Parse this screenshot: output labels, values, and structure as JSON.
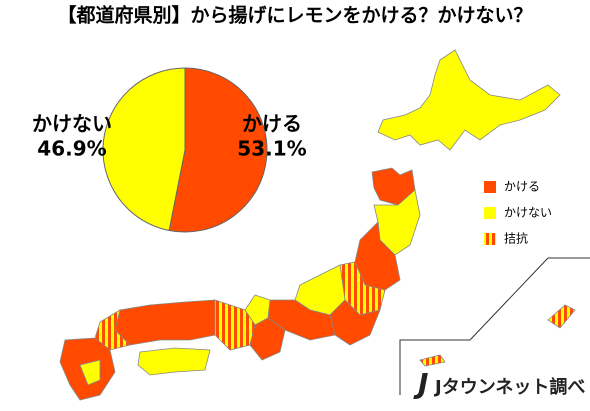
{
  "title": "【都道府県別】から揚げにレモンをかける？かけない？",
  "chart_data": {
    "type": "pie",
    "categories": [
      "かける",
      "かけない"
    ],
    "values": [
      53.1,
      46.9
    ],
    "value_labels": [
      "53.1%",
      "46.9%"
    ],
    "colors": [
      "#ff4a00",
      "#ffff00"
    ]
  },
  "map_legend": [
    {
      "label": "かける",
      "colors": [
        "#ff4a00"
      ]
    },
    {
      "label": "かけない",
      "colors": [
        "#ffff00"
      ]
    },
    {
      "label": "拮抗",
      "colors": [
        "#ff4a00",
        "#ffff00"
      ]
    }
  ],
  "source": "Jタウンネット調べ"
}
